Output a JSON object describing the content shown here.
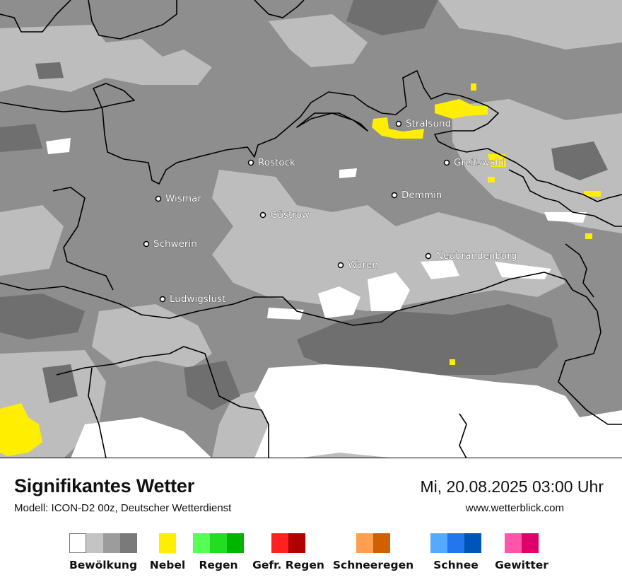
{
  "title": "Signifikantes Wetter",
  "subtitle": "Modell: ICON-D2 00z, Deutscher Wetterdienst",
  "datetime": "Mi, 20.08.2025 03:00 Uhr",
  "website": "www.wetterblick.com",
  "cities": [
    {
      "name": "Stralsund"
    },
    {
      "name": "Rostock"
    },
    {
      "name": "Greifswald"
    },
    {
      "name": "Wismar"
    },
    {
      "name": "Demmin"
    },
    {
      "name": "Güstrow"
    },
    {
      "name": "Schwerin"
    },
    {
      "name": "Neubrandenburg"
    },
    {
      "name": "Waren"
    },
    {
      "name": "Ludwigslust"
    }
  ],
  "legend": [
    {
      "label": "Bewölkung",
      "colors": [
        "#ffffff",
        "#c4c4c4",
        "#9c9c9c",
        "#7a7a7a"
      ]
    },
    {
      "label": "Nebel",
      "colors": [
        "#ffee00"
      ]
    },
    {
      "label": "Regen",
      "colors": [
        "#55ff55",
        "#22dd22",
        "#00b400"
      ]
    },
    {
      "label": "Gefr. Regen",
      "colors": [
        "#ff2020",
        "#b00000"
      ]
    },
    {
      "label": "Schneeregen",
      "colors": [
        "#ffa050",
        "#d06000"
      ]
    },
    {
      "label": "Schnee",
      "colors": [
        "#55aaff",
        "#2277ee",
        "#0055bb"
      ]
    },
    {
      "label": "Gewitter",
      "colors": [
        "#ff55aa",
        "#e0006a"
      ]
    }
  ]
}
